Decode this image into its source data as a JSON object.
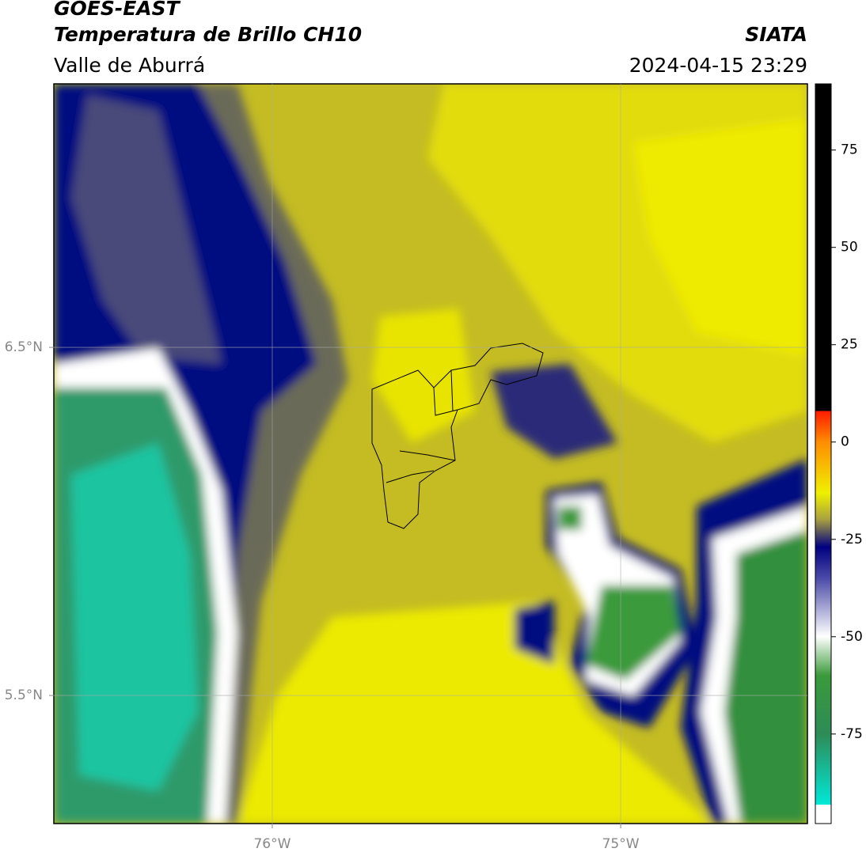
{
  "header": {
    "title": "GOES-EAST",
    "subtitle": "Temperatura de Brillo CH10",
    "region": "Valle de Aburrá",
    "source": "SIATA",
    "datetime": "2024-04-15 23:29"
  },
  "map": {
    "xlim": [
      -76.627,
      -74.464
    ],
    "ylim": [
      5.132,
      7.257
    ],
    "xticks": [
      {
        "value": -76,
        "label": "76°W"
      },
      {
        "value": -75,
        "label": "75°W"
      }
    ],
    "yticks": [
      {
        "value": 6.5,
        "label": "6.5°N"
      },
      {
        "value": 5.5,
        "label": "5.5°N"
      }
    ],
    "grid": true
  },
  "colorbar": {
    "lim": [
      -98,
      92
    ],
    "ticks": [
      75,
      50,
      25,
      0,
      -25,
      -50,
      -75
    ]
  }
}
